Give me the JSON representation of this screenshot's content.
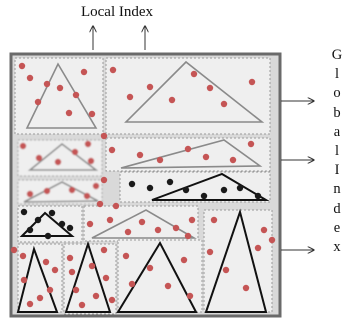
{
  "labels": {
    "local_index": "Local Index",
    "global_index": [
      "G",
      "l",
      "o",
      "b",
      "a",
      "l",
      "I",
      "n",
      "d",
      "e",
      "x"
    ]
  },
  "colors": {
    "frame": "#6a6a6a",
    "panel": "#d9d9d9",
    "region_fill": "#efefef",
    "region_stroke": "#9a9a9a",
    "triangle_light": "#8a8a8a",
    "triangle_dark": "#111111",
    "dot_red": "#c55555",
    "dot_dark": "#1a1a1a",
    "arrow": "#333333"
  },
  "regions": [
    {
      "id": "r1",
      "triangle": "light",
      "red_dots": 9,
      "dark_dots": 0
    },
    {
      "id": "r2",
      "triangle": "light",
      "red_dots": 8,
      "dark_dots": 0
    },
    {
      "id": "r3",
      "triangle": "light",
      "red_dots": 6,
      "dark_dots": 0,
      "blurred": true
    },
    {
      "id": "r4",
      "triangle": "light",
      "red_dots": 7,
      "dark_dots": 0
    },
    {
      "id": "r5",
      "triangle": "light",
      "red_dots": 5,
      "dark_dots": 0,
      "blurred": true
    },
    {
      "id": "r6",
      "triangle": "dark",
      "red_dots": 0,
      "dark_dots": 8
    },
    {
      "id": "r7",
      "triangle": "dark",
      "red_dots": 0,
      "dark_dots": 7
    },
    {
      "id": "r8",
      "triangle": "light",
      "red_dots": 8,
      "dark_dots": 0
    },
    {
      "id": "r9",
      "triangle": "dark",
      "red_dots": 7,
      "dark_dots": 0
    },
    {
      "id": "r10",
      "triangle": "dark",
      "red_dots": 9,
      "dark_dots": 0
    },
    {
      "id": "r11",
      "triangle": "dark",
      "red_dots": 6,
      "dark_dots": 0
    },
    {
      "id": "r12",
      "triangle": "dark",
      "red_dots": 5,
      "dark_dots": 0
    }
  ]
}
